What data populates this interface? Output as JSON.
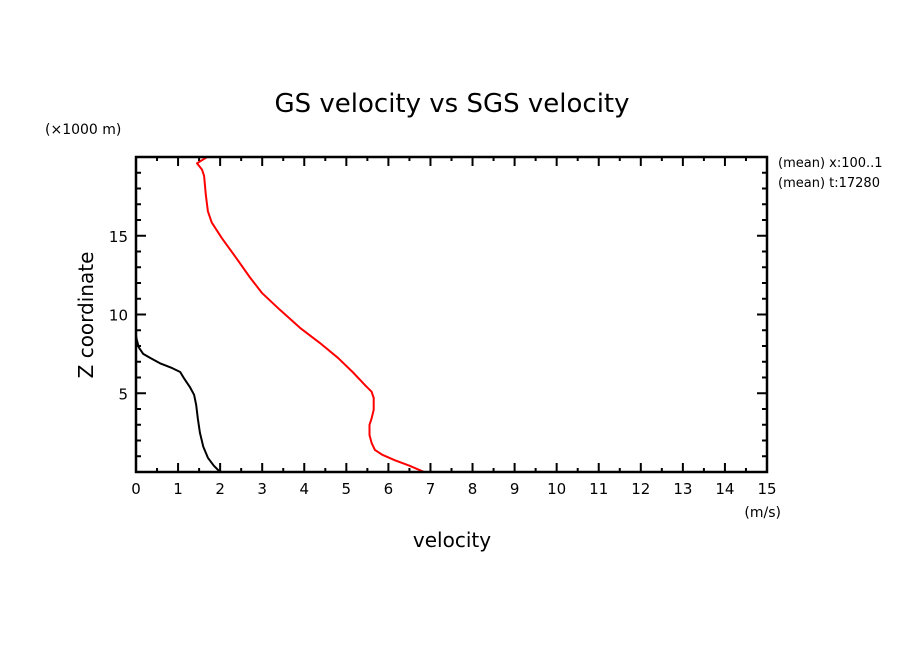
{
  "chart_data": {
    "type": "line",
    "title": "GS velocity vs SGS velocity",
    "xlabel": "velocity",
    "xunit": "(m/s)",
    "ylabel": "Z coordinate",
    "yunit": "(×1000 m)",
    "xlim": [
      0,
      15
    ],
    "ylim": [
      0,
      20
    ],
    "xticks": [
      0,
      1,
      2,
      3,
      4,
      5,
      6,
      7,
      8,
      9,
      10,
      11,
      12,
      13,
      14,
      15
    ],
    "yticks": [
      5,
      10,
      15
    ],
    "grid": false,
    "annotations": [
      "(mean) x:100..1",
      "(mean) t:17280"
    ],
    "series": [
      {
        "name": "GS velocity",
        "color": "#ff0000",
        "x": [
          6.85,
          6.5,
          6.15,
          5.85,
          5.68,
          5.6,
          5.55,
          5.55,
          5.6,
          5.65,
          5.65,
          5.6,
          5.45,
          5.15,
          4.8,
          4.37,
          3.9,
          3.42,
          3.0,
          2.71,
          2.38,
          2.04,
          1.8,
          1.71,
          1.66,
          1.62,
          1.57,
          1.45,
          1.69
        ],
        "z": [
          0.0,
          0.4,
          0.75,
          1.1,
          1.4,
          1.85,
          2.35,
          3.0,
          3.4,
          3.95,
          4.7,
          5.1,
          5.5,
          6.35,
          7.25,
          8.2,
          9.15,
          10.3,
          11.35,
          12.35,
          13.6,
          14.85,
          15.85,
          16.55,
          17.6,
          18.8,
          19.2,
          19.6,
          20.0
        ]
      },
      {
        "name": "SGS velocity",
        "color": "#000000",
        "x": [
          2.0,
          1.85,
          1.71,
          1.6,
          1.52,
          1.47,
          1.43,
          1.38,
          1.28,
          1.14,
          1.05,
          0.86,
          0.57,
          0.33,
          0.17,
          0.07,
          0.02,
          0.0
        ],
        "z": [
          0.0,
          0.4,
          0.9,
          1.6,
          2.5,
          3.4,
          4.25,
          4.9,
          5.4,
          5.95,
          6.35,
          6.6,
          6.9,
          7.25,
          7.5,
          7.9,
          8.4,
          8.65
        ]
      }
    ]
  }
}
